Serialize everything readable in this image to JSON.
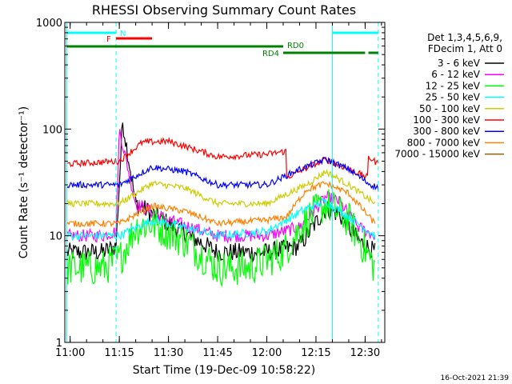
{
  "chart_data": {
    "type": "line",
    "title": "RHESSI Observing Summary Count Rates",
    "xlabel": "Start Time (19-Dec-09 10:58:22)",
    "ylabel": "Count Rate (s⁻¹ detector⁻¹)",
    "ylim": [
      1,
      1000
    ],
    "yscale": "log",
    "xlim": [
      "10:58:22",
      "12:36:00"
    ],
    "x_ticks": [
      "11:00",
      "11:15",
      "11:30",
      "11:45",
      "12:00",
      "12:15",
      "12:30"
    ],
    "y_ticks": [
      {
        "value": 1,
        "label": "1"
      },
      {
        "value": 10,
        "label": "10"
      },
      {
        "value": 100,
        "label": "100"
      },
      {
        "value": 1000,
        "label": "1000"
      }
    ],
    "legend_title": [
      "Det 1,3,4,5,6,9,",
      "FDecim 1, Att 0"
    ],
    "legend_position": "right",
    "series": [
      {
        "name": "3 - 6 keV",
        "color": "#000000",
        "time": [
          "10:59",
          "11:10",
          "11:14",
          "11:16",
          "11:20",
          "11:30",
          "11:45",
          "12:00",
          "12:10",
          "12:18",
          "12:22",
          "12:28",
          "12:33"
        ],
        "values": [
          7,
          7,
          8,
          120,
          20,
          13,
          7,
          7,
          8,
          18,
          16,
          9,
          7
        ]
      },
      {
        "name": "6 - 12 keV",
        "color": "#ff00ff",
        "time": [
          "10:59",
          "11:10",
          "11:14",
          "11:15",
          "11:20",
          "11:30",
          "11:45",
          "12:00",
          "12:10",
          "12:18",
          "12:22",
          "12:28",
          "12:33"
        ],
        "values": [
          10,
          10,
          11,
          100,
          20,
          14,
          10,
          10,
          12,
          23,
          21,
          12,
          10
        ]
      },
      {
        "name": "12 - 25 keV",
        "color": "#00ff00",
        "time": [
          "10:59",
          "11:10",
          "11:15",
          "11:20",
          "11:25",
          "11:35",
          "11:45",
          "11:55",
          "12:05",
          "12:12",
          "12:18",
          "12:25",
          "12:33"
        ],
        "values": [
          5,
          5,
          6,
          12,
          13,
          9,
          5,
          5,
          7,
          14,
          20,
          14,
          5
        ]
      },
      {
        "name": "25 - 50 keV",
        "color": "#00ffff",
        "time": [
          "10:59",
          "11:15",
          "11:25",
          "11:35",
          "11:45",
          "12:00",
          "12:12",
          "12:18",
          "12:25",
          "12:33"
        ],
        "values": [
          10,
          10,
          14,
          12,
          10,
          11,
          18,
          21,
          15,
          10
        ]
      },
      {
        "name": "50 - 100 keV",
        "color": "#cccc00",
        "time": [
          "10:59",
          "11:15",
          "11:25",
          "11:35",
          "11:45",
          "12:00",
          "12:12",
          "12:18",
          "12:25",
          "12:33"
        ],
        "values": [
          20,
          20,
          31,
          28,
          20,
          20,
          30,
          40,
          30,
          20
        ]
      },
      {
        "name": "100 - 300 keV",
        "color": "#ff0000",
        "time": [
          "10:59",
          "11:15",
          "11:22",
          "11:30",
          "11:45",
          "12:00",
          "12:06",
          "12:06",
          "12:12",
          "12:18",
          "12:25",
          "12:31",
          "12:31",
          "12:34"
        ],
        "values": [
          47,
          50,
          75,
          77,
          55,
          58,
          62,
          35,
          43,
          52,
          42,
          35,
          55,
          47
        ]
      },
      {
        "name": "300 - 800 keV",
        "color": "#0000ff",
        "time": [
          "10:59",
          "11:15",
          "11:25",
          "11:35",
          "11:45",
          "12:00",
          "12:10",
          "12:18",
          "12:25",
          "12:31",
          "12:34"
        ],
        "values": [
          30,
          30,
          44,
          40,
          30,
          30,
          42,
          52,
          42,
          31,
          28
        ]
      },
      {
        "name": "800 - 7000 keV",
        "color": "#ff8000",
        "time": [
          "10:59",
          "11:15",
          "11:25",
          "11:35",
          "11:45",
          "12:00",
          "12:06",
          "12:12",
          "12:18",
          "12:25",
          "12:33"
        ],
        "values": [
          13,
          13,
          19,
          17,
          13,
          14,
          15,
          27,
          31,
          25,
          13
        ]
      },
      {
        "name": "7000 - 15000 keV",
        "color": "#8b6400",
        "time": [],
        "values": []
      }
    ],
    "annotations": [
      {
        "text": "N",
        "color": "#00ffff"
      },
      {
        "text": "F",
        "color": "#ff0000"
      },
      {
        "text": "RD0",
        "color": "#008000"
      },
      {
        "text": "RD4",
        "color": "#008000"
      }
    ],
    "flag_bars": [
      {
        "label": "N",
        "color": "#00ffff",
        "intervals": [
          [
            "10:59",
            "11:14"
          ],
          [
            "12:20",
            "12:34"
          ]
        ]
      },
      {
        "label": "F",
        "color": "#ff0000",
        "intervals": [
          [
            "11:14",
            "11:25"
          ]
        ]
      },
      {
        "label": "RD0",
        "color": "#008000",
        "intervals": [
          [
            "10:59",
            "12:05"
          ]
        ]
      },
      {
        "label": "RD4",
        "color": "#008000",
        "intervals": [
          [
            "12:05",
            "12:30"
          ],
          [
            "12:31",
            "12:34"
          ]
        ]
      }
    ],
    "vlines": [
      {
        "time": "10:59",
        "color": "#00ffff",
        "style": "solid"
      },
      {
        "time": "11:14",
        "color": "#00ffff",
        "style": "dashed"
      },
      {
        "time": "12:20",
        "color": "#00ffff",
        "style": "solid"
      },
      {
        "time": "12:34",
        "color": "#00ffff",
        "style": "dashed"
      }
    ]
  },
  "footer": {
    "timestamp": "16-Oct-2021 21:39"
  }
}
